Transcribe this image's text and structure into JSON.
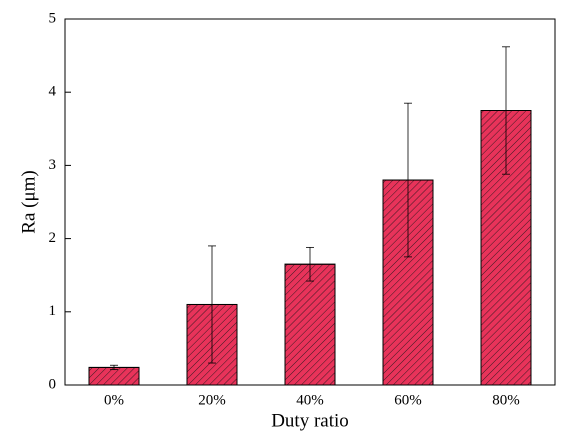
{
  "chart_data": {
    "type": "bar",
    "x_label": "Duty ratio",
    "y_label": "Ra (μm)",
    "categories": [
      "0%",
      "20%",
      "40%",
      "60%",
      "80%"
    ],
    "values": [
      0.24,
      1.1,
      1.65,
      2.8,
      3.75
    ],
    "errors": [
      0.03,
      0.8,
      0.23,
      1.05,
      0.87
    ],
    "color": "#e8335a",
    "ylim": [
      0,
      5
    ],
    "yticks": [
      0,
      1,
      2,
      3,
      4,
      5
    ]
  }
}
